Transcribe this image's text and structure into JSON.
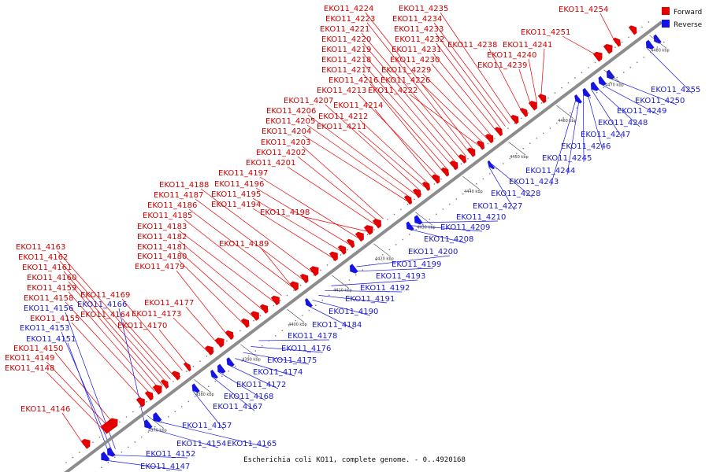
{
  "caption": "Escherichia coli KO11, complete genome. - 0..4920168",
  "legend": {
    "forward_label": "Forward",
    "reverse_label": "Reverse",
    "forward_color": "#e60000",
    "reverse_color": "#1414e6"
  },
  "ticks": [
    "4370 kbp",
    "4380 kbp",
    "4390 kbp",
    "4400 kbp",
    "4410 kbp",
    "4420 kbp",
    "4430 kbp",
    "4440 kbp",
    "4450 kbp",
    "4460 kbp",
    "4470 kbp",
    "4480 kbp"
  ],
  "forward_genes": [
    "EKO11_4146",
    "EKO11_4148",
    "EKO11_4149",
    "EKO11_4150",
    "EKO11_4155",
    "EKO11_4158",
    "EKO11_4159",
    "EKO11_4160",
    "EKO11_4161",
    "EKO11_4162",
    "EKO11_4163",
    "EKO11_4164",
    "EKO11_4169",
    "EKO11_4170",
    "EKO11_4173",
    "EKO11_4177",
    "EKO11_4179",
    "EKO11_4180",
    "EKO11_4181",
    "EKO11_4182",
    "EKO11_4183",
    "EKO11_4185",
    "EKO11_4186",
    "EKO11_4187",
    "EKO11_4188",
    "EKO11_4189",
    "EKO11_4194",
    "EKO11_4195",
    "EKO11_4196",
    "EKO11_4197",
    "EKO11_4198",
    "EKO11_4201",
    "EKO11_4202",
    "EKO11_4203",
    "EKO11_4204",
    "EKO11_4205",
    "EKO11_4206",
    "EKO11_4207",
    "EKO11_4211",
    "EKO11_4212",
    "EKO11_4214",
    "EKO11_4213",
    "EKO11_4216",
    "EKO11_4217",
    "EKO11_4218",
    "EKO11_4219",
    "EKO11_4220",
    "EKO11_4221",
    "EKO11_4223",
    "EKO11_4224",
    "EKO11_4222",
    "EKO11_4226",
    "EKO11_4229",
    "EKO11_4230",
    "EKO11_4231",
    "EKO11_4232",
    "EKO11_4233",
    "EKO11_4234",
    "EKO11_4235",
    "EKO11_4238",
    "EKO11_4239",
    "EKO11_4240",
    "EKO11_4241",
    "EKO11_4251",
    "EKO11_4254"
  ],
  "reverse_genes": [
    "EKO11_4147",
    "EKO11_4152",
    "EKO11_4154",
    "EKO11_4157",
    "EKO11_4165",
    "EKO11_4167",
    "EKO11_4168",
    "EKO11_4172",
    "EKO11_4174",
    "EKO11_4175",
    "EKO11_4176",
    "EKO11_4178",
    "EKO11_4184",
    "EKO11_4190",
    "EKO11_4191",
    "EKO11_4192",
    "EKO11_4193",
    "EKO11_4199",
    "EKO11_4200",
    "EKO11_4208",
    "EKO11_4209",
    "EKO11_4210",
    "EKO11_4227",
    "EKO11_4228",
    "EKO11_4243",
    "EKO11_4244",
    "EKO11_4245",
    "EKO11_4246",
    "EKO11_4247",
    "EKO11_4248",
    "EKO11_4249",
    "EKO11_4250",
    "EKO11_4255",
    "EKO11_4151",
    "EKO11_4153",
    "EKO11_4156",
    "EKO11_4166"
  ]
}
